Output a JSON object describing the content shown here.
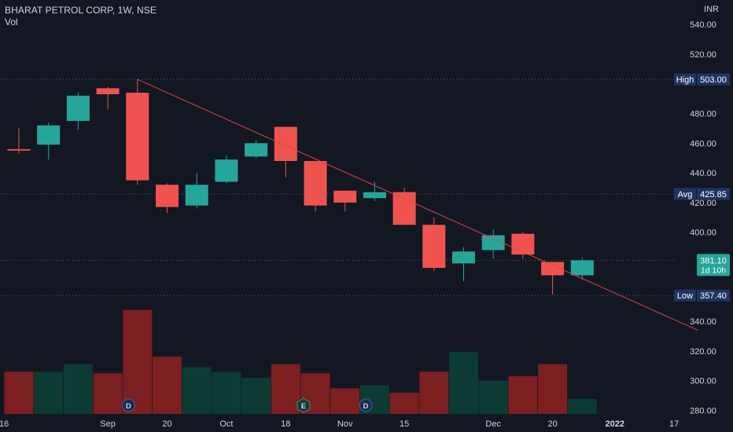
{
  "header": {
    "symbol_line": "BHARAT PETROL CORP, 1W, NSE",
    "indicator": "Vol",
    "currency": "INR"
  },
  "colors": {
    "background": "#131722",
    "up": "#26a69a",
    "down": "#ef5350",
    "vol_up": "#0c3b33",
    "vol_down": "#7b1f21",
    "trendline": "#d9474a",
    "badge_bg": "#1e3461",
    "text": "#d1d4dc"
  },
  "chart_data": {
    "type": "candlestick",
    "y_axis": {
      "min": 275,
      "max": 545,
      "ticks": [
        540,
        520,
        480,
        460,
        440,
        420,
        400,
        340,
        320,
        300,
        280
      ],
      "tick_labels": [
        "540.00",
        "520.00",
        "480.00",
        "460.00",
        "440.00",
        "420.00",
        "400.00",
        "340.00",
        "320.00",
        "300.00",
        "280.00"
      ]
    },
    "x_axis": {
      "labels": [
        {
          "text": "16",
          "index": -0.5
        },
        {
          "text": "Sep",
          "index": 3
        },
        {
          "text": "20",
          "index": 5
        },
        {
          "text": "Oct",
          "index": 7
        },
        {
          "text": "18",
          "index": 9
        },
        {
          "text": "Nov",
          "index": 11
        },
        {
          "text": "15",
          "index": 13
        },
        {
          "text": "Dec",
          "index": 16
        },
        {
          "text": "20",
          "index": 18
        },
        {
          "text": "2022",
          "index": 20.1
        },
        {
          "text": "17",
          "index": 22.1
        }
      ]
    },
    "candles": [
      {
        "open": 456,
        "high": 470,
        "low": 453,
        "close": 455
      },
      {
        "open": 459,
        "high": 474,
        "low": 449,
        "close": 472
      },
      {
        "open": 475,
        "high": 494,
        "low": 469,
        "close": 492
      },
      {
        "open": 497,
        "high": 498,
        "low": 483,
        "close": 493
      },
      {
        "open": 494,
        "high": 503,
        "low": 432,
        "close": 435
      },
      {
        "open": 432,
        "high": 433,
        "low": 413,
        "close": 417
      },
      {
        "open": 418,
        "high": 440,
        "low": 416,
        "close": 432
      },
      {
        "open": 434,
        "high": 452,
        "low": 433,
        "close": 449
      },
      {
        "open": 451,
        "high": 462,
        "low": 450,
        "close": 460
      },
      {
        "open": 471,
        "high": 471,
        "low": 437,
        "close": 448
      },
      {
        "open": 448,
        "high": 448,
        "low": 414,
        "close": 418
      },
      {
        "open": 428,
        "high": 428,
        "low": 414,
        "close": 420
      },
      {
        "open": 423,
        "high": 434,
        "low": 421,
        "close": 427
      },
      {
        "open": 427,
        "high": 430,
        "low": 405,
        "close": 405
      },
      {
        "open": 405,
        "high": 410,
        "low": 374,
        "close": 376
      },
      {
        "open": 379,
        "high": 390,
        "low": 367,
        "close": 387
      },
      {
        "open": 388,
        "high": 402,
        "low": 382,
        "close": 398
      },
      {
        "open": 399,
        "high": 400,
        "low": 382,
        "close": 385
      },
      {
        "open": 380,
        "high": 380,
        "low": 358,
        "close": 371
      },
      {
        "open": 371,
        "high": 383,
        "low": 368,
        "close": 381.1
      }
    ],
    "volume": {
      "max_scale": 100,
      "bars": [
        {
          "value": 28,
          "up": false
        },
        {
          "value": 28,
          "up": true
        },
        {
          "value": 33,
          "up": true
        },
        {
          "value": 27,
          "up": false
        },
        {
          "value": 69,
          "up": false
        },
        {
          "value": 38,
          "up": false
        },
        {
          "value": 31,
          "up": true
        },
        {
          "value": 28,
          "up": true
        },
        {
          "value": 24,
          "up": true
        },
        {
          "value": 33,
          "up": false
        },
        {
          "value": 27,
          "up": false
        },
        {
          "value": 17,
          "up": false
        },
        {
          "value": 19,
          "up": true
        },
        {
          "value": 14,
          "up": false
        },
        {
          "value": 28,
          "up": false
        },
        {
          "value": 41,
          "up": true
        },
        {
          "value": 22,
          "up": true
        },
        {
          "value": 25,
          "up": false
        },
        {
          "value": 33,
          "up": false
        },
        {
          "value": 10,
          "up": true
        }
      ]
    },
    "event_markers": [
      {
        "label": "D",
        "index": 3.7
      },
      {
        "label": "E",
        "index": 9.6
      },
      {
        "label": "D",
        "index": 11.7
      }
    ],
    "trendline": {
      "from": {
        "index": 4,
        "price": 503
      },
      "to": {
        "index": 22.9,
        "price": 334
      }
    },
    "reference_lines": [
      {
        "name": "High",
        "value": 503.0,
        "value_label": "503.00"
      },
      {
        "name": "Avg",
        "value": 425.85,
        "value_label": "425.85"
      },
      {
        "name": "Low",
        "value": 357.4,
        "value_label": "357.40"
      }
    ],
    "last_price": {
      "value": 381.1,
      "value_label": "381.10",
      "countdown": "1d 10h"
    }
  }
}
